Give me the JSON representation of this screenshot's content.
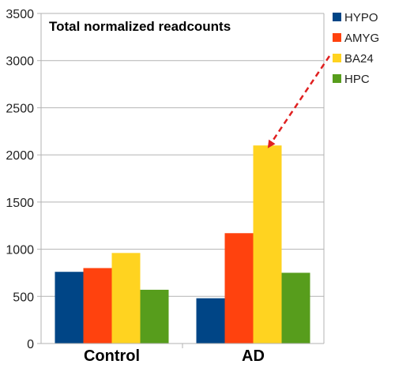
{
  "chart_data": {
    "type": "bar",
    "title": "Total normalized readcounts",
    "xlabel": "",
    "ylabel": "",
    "categories": [
      "Control",
      "AD"
    ],
    "ylim": [
      0,
      3500
    ],
    "yticks": [
      0,
      500,
      1000,
      1500,
      2000,
      2500,
      3000,
      3500
    ],
    "grid": true,
    "legend_position": "right",
    "series": [
      {
        "name": "HYPO",
        "color": "#004586",
        "values": [
          760,
          480
        ]
      },
      {
        "name": "AMYG",
        "color": "#ff420e",
        "values": [
          800,
          1170
        ]
      },
      {
        "name": "BA24",
        "color": "#ffd320",
        "values": [
          960,
          2100
        ]
      },
      {
        "name": "HPC",
        "color": "#579d1c",
        "values": [
          570,
          750
        ]
      }
    ],
    "annotation": {
      "type": "dashed-arrow",
      "color": "#e02020",
      "from": "BA24 legend entry",
      "to_series": "BA24",
      "to_category": "AD"
    }
  }
}
